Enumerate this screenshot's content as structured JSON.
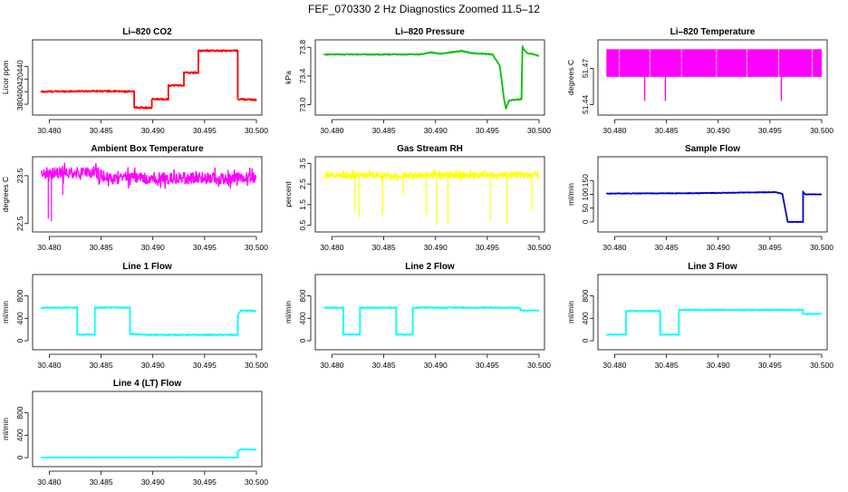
{
  "figure_title": "FEF_070330  2 Hz Diagnostics Zoomed 11.5–12",
  "chart_data": [
    {
      "type": "line",
      "title": "Li–820 CO2",
      "ylabel": "Licor ppm",
      "color": "#ff0000",
      "xlim": [
        30.479,
        30.5
      ],
      "ylim": [
        370,
        475
      ],
      "xticks": [
        30.48,
        30.485,
        30.49,
        30.495,
        30.5
      ],
      "xtick_labels": [
        "30.480",
        "30.485",
        "30.490",
        "30.495",
        "30.500"
      ],
      "yticks": [
        380,
        400,
        420,
        440
      ],
      "ytick_labels": [
        "380",
        "400",
        "420",
        "440"
      ],
      "noise": 1.2,
      "x": [
        30.4792,
        30.4847,
        30.4882,
        30.4882,
        30.4899,
        30.4899,
        30.4915,
        30.4915,
        30.493,
        30.493,
        30.4944,
        30.4944,
        30.4958,
        30.4982,
        30.4982,
        30.5
      ],
      "y": [
        400,
        401,
        400,
        375,
        374,
        388,
        388,
        410,
        410,
        430,
        430,
        465,
        465,
        465,
        388,
        387
      ]
    },
    {
      "type": "line",
      "title": "Li–820 Pressure",
      "ylabel": "kPa",
      "color": "#00c000",
      "xlim": [
        30.479,
        30.5
      ],
      "ylim": [
        72.92,
        73.84
      ],
      "xticks": [
        30.48,
        30.485,
        30.49,
        30.495,
        30.5
      ],
      "xtick_labels": [
        "30.480",
        "30.485",
        "30.490",
        "30.495",
        "30.500"
      ],
      "yticks": [
        73.0,
        73.4,
        73.8
      ],
      "ytick_labels": [
        "73.0",
        "73.4",
        "73.8"
      ],
      "noise": 0.006,
      "x": [
        30.4792,
        30.4885,
        30.4895,
        30.4905,
        30.4925,
        30.4935,
        30.4955,
        30.4962,
        30.4966,
        30.4968,
        30.4971,
        30.4983,
        30.4984,
        30.4985,
        30.4988,
        30.4995,
        30.5
      ],
      "y": [
        73.7,
        73.7,
        73.73,
        73.71,
        73.75,
        73.72,
        73.7,
        73.55,
        73.1,
        72.95,
        73.06,
        73.08,
        73.82,
        73.78,
        73.72,
        73.7,
        73.68
      ]
    },
    {
      "type": "band",
      "title": "Li–820 Temperature",
      "ylabel": "degrees C",
      "color": "#ff00ff",
      "xlim": [
        30.479,
        30.5
      ],
      "ylim": [
        51.435,
        51.49
      ],
      "xticks": [
        30.48,
        30.485,
        30.49,
        30.495,
        30.5
      ],
      "xtick_labels": [
        "30.480",
        "30.485",
        "30.490",
        "30.495",
        "30.500"
      ],
      "yticks": [
        51.44,
        51.47
      ],
      "ytick_labels": [
        "51.44",
        "51.47"
      ],
      "band_low": 51.463,
      "band_high": 51.486,
      "band_x": [
        30.4792,
        30.5
      ],
      "spikes": [
        30.4829,
        30.4849,
        30.4961
      ]
    },
    {
      "type": "noisy",
      "title": "Ambient Box Temperature",
      "ylabel": "degrees C",
      "color": "#ff00ff",
      "xlim": [
        30.479,
        30.5
      ],
      "ylim": [
        22.42,
        23.8
      ],
      "xticks": [
        30.48,
        30.485,
        30.49,
        30.495,
        30.5
      ],
      "xtick_labels": [
        "30.480",
        "30.485",
        "30.490",
        "30.495",
        "30.500"
      ],
      "yticks": [
        22.5,
        23.5
      ],
      "ytick_labels": [
        "22.5",
        "23.5"
      ],
      "noise": 0.12,
      "x": [
        30.4792,
        30.4845,
        30.4858,
        30.4995,
        30.5
      ],
      "y": [
        23.55,
        23.55,
        23.45,
        23.45,
        23.5
      ],
      "dips": [
        [
          30.4799,
          22.6
        ],
        [
          30.4802,
          22.55
        ],
        [
          30.4813,
          23.1
        ]
      ]
    },
    {
      "type": "noisy",
      "title": "Gas Stream RH",
      "ylabel": "percent",
      "color": "#ffff00",
      "xlim": [
        30.479,
        30.5
      ],
      "ylim": [
        0.4,
        3.6
      ],
      "xticks": [
        30.48,
        30.485,
        30.49,
        30.495,
        30.5
      ],
      "xtick_labels": [
        "30.480",
        "30.485",
        "30.490",
        "30.495",
        "30.500"
      ],
      "yticks": [
        0.5,
        1.5,
        2.5,
        3.5
      ],
      "ytick_labels": [
        "0.5",
        "1.5",
        "2.5",
        "3.5"
      ],
      "noise": 0.15,
      "x": [
        30.4792,
        30.5
      ],
      "y": [
        2.9,
        2.95
      ],
      "dips": [
        [
          30.4822,
          1.2
        ],
        [
          30.4826,
          0.9
        ],
        [
          30.4849,
          1.0
        ],
        [
          30.4869,
          2.0
        ],
        [
          30.4891,
          1.0
        ],
        [
          30.4901,
          0.5
        ],
        [
          30.4912,
          0.6
        ],
        [
          30.4953,
          0.7
        ],
        [
          30.4969,
          0.6
        ],
        [
          30.4993,
          1.2
        ]
      ]
    },
    {
      "type": "line",
      "title": "Sample Flow",
      "ylabel": "ml/min",
      "color": "#0000d0",
      "xlim": [
        30.479,
        30.5
      ],
      "ylim": [
        -20,
        220
      ],
      "xticks": [
        30.48,
        30.485,
        30.49,
        30.495,
        30.5
      ],
      "xtick_labels": [
        "30.480",
        "30.485",
        "30.490",
        "30.495",
        "30.500"
      ],
      "yticks": [
        0,
        50,
        100,
        150
      ],
      "ytick_labels": [
        "0",
        "50",
        "100",
        "150"
      ],
      "noise": 1.0,
      "x": [
        30.4792,
        30.4875,
        30.4935,
        30.4955,
        30.4962,
        30.4967,
        30.4967,
        30.4982,
        30.4982,
        30.4984,
        30.5
      ],
      "y": [
        103,
        104,
        107,
        108,
        102,
        2,
        0,
        0,
        110,
        100,
        100
      ]
    },
    {
      "type": "line",
      "title": "Line 1 Flow",
      "ylabel": "ml/min",
      "color": "#00ffff",
      "xlim": [
        30.479,
        30.5
      ],
      "ylim": [
        -80,
        1100
      ],
      "xticks": [
        30.48,
        30.485,
        30.49,
        30.495,
        30.5
      ],
      "xtick_labels": [
        "30.480",
        "30.485",
        "30.490",
        "30.495",
        "30.500"
      ],
      "yticks": [
        0,
        400,
        800
      ],
      "ytick_labels": [
        "0",
        "400",
        "800"
      ],
      "noise": 8,
      "x": [
        30.4792,
        30.4827,
        30.4827,
        30.4844,
        30.4844,
        30.4878,
        30.4878,
        30.4895,
        30.4982,
        30.4982,
        30.4985,
        30.5
      ],
      "y": [
        590,
        590,
        110,
        110,
        590,
        590,
        120,
        105,
        105,
        450,
        540,
        530
      ]
    },
    {
      "type": "line",
      "title": "Line 2 Flow",
      "ylabel": "ml/min",
      "color": "#00ffff",
      "xlim": [
        30.479,
        30.5
      ],
      "ylim": [
        -80,
        1100
      ],
      "xticks": [
        30.48,
        30.485,
        30.49,
        30.495,
        30.5
      ],
      "xtick_labels": [
        "30.480",
        "30.485",
        "30.490",
        "30.495",
        "30.500"
      ],
      "yticks": [
        0,
        400,
        800
      ],
      "ytick_labels": [
        "0",
        "400",
        "800"
      ],
      "noise": 8,
      "x": [
        30.4792,
        30.4811,
        30.4811,
        30.4827,
        30.4827,
        30.4862,
        30.4862,
        30.4878,
        30.4878,
        30.4982,
        30.4982,
        30.5
      ],
      "y": [
        590,
        590,
        110,
        110,
        590,
        590,
        110,
        110,
        590,
        590,
        540,
        540
      ]
    },
    {
      "type": "line",
      "title": "Line 3 Flow",
      "ylabel": "ml/min",
      "color": "#00ffff",
      "xlim": [
        30.479,
        30.5
      ],
      "ylim": [
        -80,
        1100
      ],
      "xticks": [
        30.48,
        30.485,
        30.49,
        30.495,
        30.5
      ],
      "xtick_labels": [
        "30.480",
        "30.485",
        "30.490",
        "30.495",
        "30.500"
      ],
      "yticks": [
        0,
        400,
        800
      ],
      "ytick_labels": [
        "0",
        "400",
        "800"
      ],
      "noise": 8,
      "x": [
        30.4792,
        30.4811,
        30.4811,
        30.4844,
        30.4844,
        30.4862,
        30.4862,
        30.4982,
        30.4982,
        30.5
      ],
      "y": [
        110,
        110,
        530,
        530,
        110,
        110,
        550,
        550,
        480,
        480
      ]
    },
    {
      "type": "line",
      "title": "Line 4 (LT) Flow",
      "ylabel": "ml/min",
      "color": "#00ffff",
      "xlim": [
        30.479,
        30.5
      ],
      "ylim": [
        -80,
        1100
      ],
      "xticks": [
        30.48,
        30.485,
        30.49,
        30.495,
        30.5
      ],
      "xtick_labels": [
        "30.480",
        "30.485",
        "30.490",
        "30.495",
        "30.500"
      ],
      "yticks": [
        0,
        400,
        800
      ],
      "ytick_labels": [
        "0",
        "400",
        "800"
      ],
      "noise": 3,
      "x": [
        30.4792,
        30.4982,
        30.4982,
        30.4985,
        30.5
      ],
      "y": [
        2,
        2,
        110,
        150,
        140
      ]
    }
  ]
}
